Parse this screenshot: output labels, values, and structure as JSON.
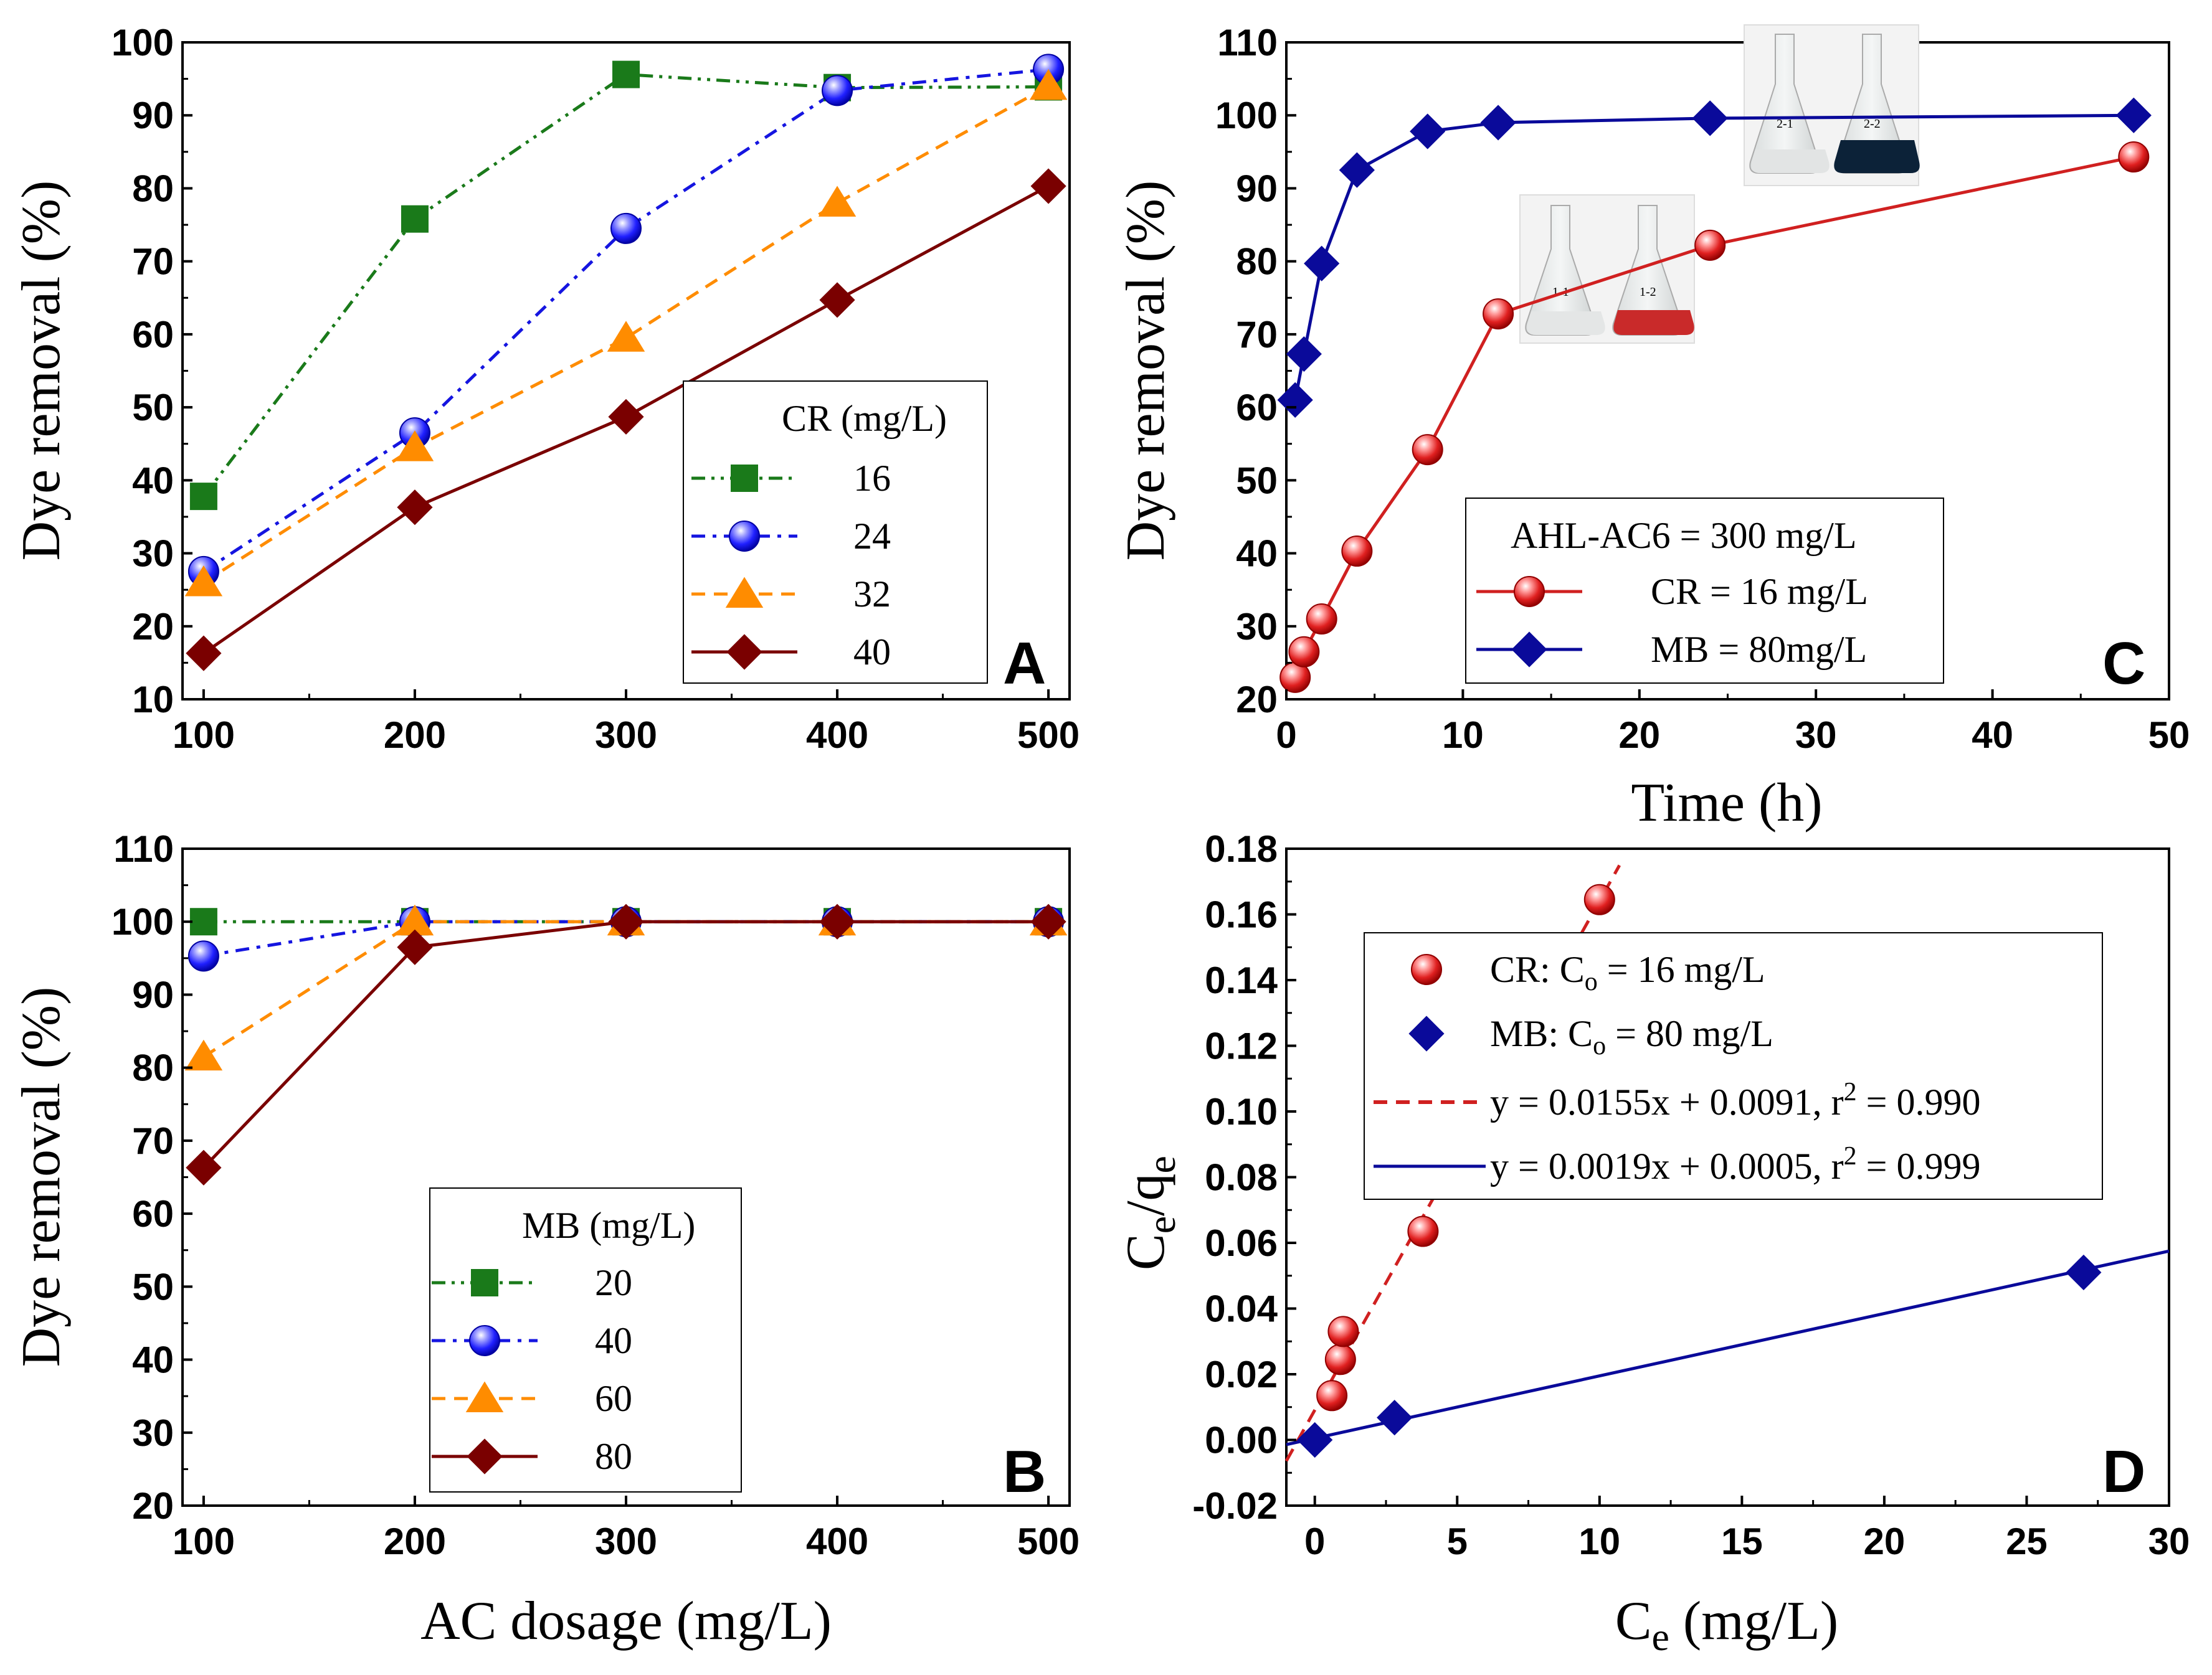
{
  "colors": {
    "green": "#1a7a1a",
    "blue": "#1515e0",
    "orange": "#ff8c00",
    "darkred": "#7a0000",
    "red": "#d02020",
    "navy": "#0a0a9a"
  },
  "chart_data": [
    {
      "panel": "A",
      "type": "line",
      "xlabel": "",
      "ylabel": "Dye removal (%)",
      "xlim": [
        90,
        510
      ],
      "ylim": [
        10,
        100
      ],
      "xticks": [
        100,
        200,
        300,
        400,
        500
      ],
      "yticks": [
        10,
        20,
        30,
        40,
        50,
        60,
        70,
        80,
        90,
        100
      ],
      "legend_title": "CR (mg/L)",
      "legend_position": "center-right",
      "x": [
        100,
        200,
        300,
        400,
        500
      ],
      "series": [
        {
          "name": "16",
          "marker": "square",
          "color": "green",
          "dash": "dashdotdot",
          "values": [
            37.8,
            75.8,
            95.6,
            93.8,
            93.9
          ]
        },
        {
          "name": "24",
          "marker": "circle",
          "color": "blue",
          "dash": "dashdot",
          "values": [
            27.5,
            46.5,
            74.5,
            93.4,
            96.3
          ]
        },
        {
          "name": "32",
          "marker": "triangle",
          "color": "orange",
          "dash": "dash",
          "values": [
            26.0,
            44.5,
            59.5,
            78.0,
            94.0
          ]
        },
        {
          "name": "40",
          "marker": "diamond",
          "color": "darkred",
          "dash": "solid",
          "values": [
            16.3,
            36.3,
            48.7,
            64.7,
            80.3
          ]
        }
      ]
    },
    {
      "panel": "B",
      "type": "line",
      "xlabel": "AC dosage (mg/L)",
      "ylabel": "Dye removal (%)",
      "xlim": [
        90,
        510
      ],
      "ylim": [
        20,
        110
      ],
      "xticks": [
        100,
        200,
        300,
        400,
        500
      ],
      "yticks": [
        20,
        30,
        40,
        50,
        60,
        70,
        80,
        90,
        100,
        110
      ],
      "legend_title": "MB (mg/L)",
      "legend_position": "bottom-center",
      "x": [
        100,
        200,
        300,
        400,
        500
      ],
      "series": [
        {
          "name": "20",
          "marker": "square",
          "color": "green",
          "dash": "dashdotdot",
          "values": [
            100,
            100,
            100,
            100,
            100
          ]
        },
        {
          "name": "40",
          "marker": "circle",
          "color": "blue",
          "dash": "dashdot",
          "values": [
            95.3,
            100,
            100,
            100,
            100
          ]
        },
        {
          "name": "60",
          "marker": "triangle",
          "color": "orange",
          "dash": "dash",
          "values": [
            81.5,
            100,
            100,
            100,
            100
          ]
        },
        {
          "name": "80",
          "marker": "diamond",
          "color": "darkred",
          "dash": "solid",
          "values": [
            66.3,
            96.5,
            100,
            100,
            100
          ]
        }
      ]
    },
    {
      "panel": "C",
      "type": "line",
      "xlabel": "Time (h)",
      "ylabel": "Dye removal (%)",
      "xlim": [
        0,
        50
      ],
      "ylim": [
        20,
        110
      ],
      "xticks": [
        0,
        10,
        20,
        30,
        40,
        50
      ],
      "yticks": [
        20,
        30,
        40,
        50,
        60,
        70,
        80,
        90,
        100,
        110
      ],
      "legend_title": "AHL-AC6 = 300 mg/L",
      "legend_position": "bottom-center",
      "inset_photos": [
        {
          "flask_labels": [
            "1-1",
            "1-2"
          ],
          "liquid_color": "red"
        },
        {
          "flask_labels": [
            "2-1",
            "2-2"
          ],
          "liquid_color": "navy"
        }
      ],
      "series": [
        {
          "name": "CR = 16 mg/L",
          "marker": "circle",
          "color": "red",
          "dash": "solid",
          "x": [
            0.5,
            1,
            2,
            4,
            8,
            12,
            24,
            48
          ],
          "values": [
            23.0,
            26.5,
            31.0,
            40.3,
            54.2,
            72.8,
            82.2,
            94.3
          ]
        },
        {
          "name": "MB = 80mg/L",
          "marker": "diamond",
          "color": "navy",
          "dash": "solid",
          "x": [
            0.5,
            1,
            2,
            4,
            8,
            12,
            24,
            48
          ],
          "values": [
            61.0,
            67.3,
            79.7,
            92.5,
            97.8,
            99.0,
            99.6,
            100.0
          ]
        }
      ]
    },
    {
      "panel": "D",
      "type": "scatter",
      "xlabel": "Ce (mg/L)",
      "ylabel": "Ce/qe",
      "xlim": [
        -1,
        30
      ],
      "ylim": [
        -0.02,
        0.18
      ],
      "xticks": [
        0,
        5,
        10,
        15,
        20,
        25,
        30
      ],
      "yticks": [
        -0.02,
        0.0,
        0.02,
        0.04,
        0.06,
        0.08,
        0.1,
        0.12,
        0.14,
        0.16,
        0.18
      ],
      "legend_position": "top-center",
      "series": [
        {
          "name": "CR: Co = 16 mg/L",
          "marker": "circle",
          "color": "red",
          "x": [
            0.6,
            0.9,
            1.0,
            3.8,
            10.0
          ],
          "values": [
            0.0135,
            0.0245,
            0.033,
            0.0635,
            0.1645
          ]
        },
        {
          "name": "MB: Co = 80 mg/L",
          "marker": "diamond",
          "color": "navy",
          "x": [
            0.0,
            2.8,
            27.0
          ],
          "values": [
            0.0,
            0.0068,
            0.051
          ]
        }
      ],
      "fits": [
        {
          "label": "y = 0.0155x + 0.0091, r2 = 0.990",
          "slope": 0.0155,
          "intercept": 0.0091,
          "x_range": [
            -1,
            10.7
          ],
          "color": "red",
          "dash": "dash"
        },
        {
          "label": "y = 0.0019x + 0.0005, r2 = 0.999",
          "slope": 0.0019,
          "intercept": 0.0005,
          "x_range": [
            -1,
            30
          ],
          "color": "navy",
          "dash": "solid"
        }
      ]
    }
  ],
  "legend_text": {
    "A": {
      "title": "CR (mg/L)",
      "items": [
        "16",
        "24",
        "32",
        "40"
      ]
    },
    "B": {
      "title": "MB (mg/L)",
      "items": [
        "20",
        "40",
        "60",
        "80"
      ]
    },
    "C": {
      "title": "AHL-AC6 = 300 mg/L",
      "items": [
        "CR = 16 mg/L",
        "MB = 80mg/L"
      ]
    },
    "D": {
      "cr": {
        "pre": "CR: C",
        "sub": "o",
        "post": " = 16 mg/L"
      },
      "mb": {
        "pre": "MB: C",
        "sub": "o",
        "post": " = 80 mg/L"
      },
      "fit1": {
        "pre": "y = 0.0155x + 0.0091, r",
        "sup": "2",
        "post": " = 0.990"
      },
      "fit2": {
        "pre": "y = 0.0019x + 0.0005, r",
        "sup": "2",
        "post": " = 0.999"
      }
    }
  },
  "axis_text": {
    "A_ylabel": "Dye removal (%)",
    "B_ylabel": "Dye removal (%)",
    "B_xlabel": "AC dosage (mg/L)",
    "C_ylabel": "Dye removal (%)",
    "C_xlabel": "Time (h)",
    "D_ylabel": {
      "c": "C",
      "e1": "e",
      "slash": "/q",
      "e2": "e"
    },
    "D_xlabel": {
      "c": "C",
      "e": "e",
      "post": " (mg/L)"
    }
  },
  "panel_letters": {
    "A": "A",
    "B": "B",
    "C": "C",
    "D": "D"
  },
  "photo_text": {
    "p1a": "1-1",
    "p1b": "1-2",
    "p2a": "2-1",
    "p2b": "2-2"
  }
}
